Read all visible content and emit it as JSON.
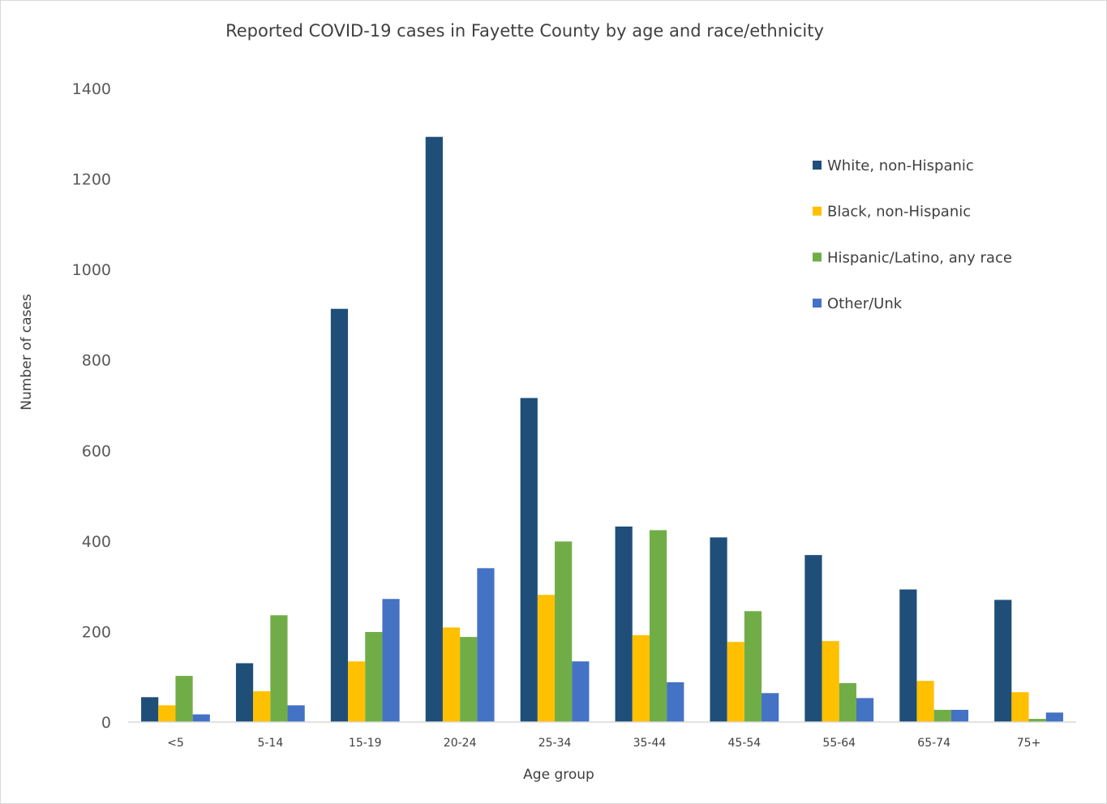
{
  "chart_data": {
    "type": "bar",
    "title": "Reported COVID-19 cases in Fayette County by age and race/ethnicity",
    "xlabel": "Age group",
    "ylabel": "Number of cases",
    "ylim": [
      0,
      1400
    ],
    "yticks": [
      "0",
      "200",
      "400",
      "600",
      "800",
      "1000",
      "1200",
      "1400"
    ],
    "grid": false,
    "legend_position": "right",
    "categories": [
      "<5",
      "5-14",
      "15-19",
      "20-24",
      "25-34",
      "35-44",
      "45-54",
      "55-64",
      "65-74",
      "75+"
    ],
    "series": [
      {
        "name": "White, non-Hispanic",
        "color": "#1f4e79",
        "values": [
          55,
          130,
          913,
          1293,
          716,
          432,
          408,
          369,
          293,
          270
        ]
      },
      {
        "name": "Black, non-Hispanic",
        "color": "#ffc000",
        "values": [
          37,
          68,
          134,
          209,
          281,
          192,
          177,
          179,
          91,
          66
        ]
      },
      {
        "name": "Hispanic/Latino, any race",
        "color": "#70ad47",
        "values": [
          102,
          236,
          199,
          188,
          399,
          424,
          245,
          86,
          27,
          7
        ]
      },
      {
        "name": "Other/Unk",
        "color": "#4472c4",
        "values": [
          17,
          37,
          272,
          340,
          134,
          88,
          64,
          53,
          27,
          21
        ]
      }
    ]
  }
}
